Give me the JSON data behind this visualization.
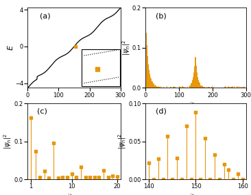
{
  "orange_color": "#E8960A",
  "black_color": "#000000",
  "panel_a": {
    "title": "(a)",
    "xlabel": "m",
    "ylabel": "E",
    "xlim": [
      0,
      300
    ],
    "ylim": [
      -4.5,
      4.2
    ],
    "yticks": [
      -4,
      0,
      4
    ],
    "xticks": [
      0,
      100,
      200,
      300
    ],
    "highlight_x": 155,
    "highlight_y": 0.0,
    "highlight2_x": 225,
    "highlight2_y": -2.5,
    "inset_x0": 175,
    "inset_x1": 298,
    "inset_y0": -4.3,
    "inset_y1": -0.3
  },
  "panel_b": {
    "title": "(b)",
    "xlabel": "site n",
    "xlim": [
      0,
      300
    ],
    "ylim": [
      0,
      0.2
    ],
    "yticks": [
      0,
      0.1,
      0.2
    ],
    "xticks": [
      0,
      100,
      200,
      300
    ]
  },
  "panel_c": {
    "title": "(c)",
    "xlabel": "site n",
    "xlim": [
      1,
      20
    ],
    "ylim": [
      0,
      0.2
    ],
    "yticks": [
      0,
      0.1,
      0.2
    ],
    "xticks": [
      1,
      10,
      20
    ],
    "x": [
      1,
      2,
      3,
      4,
      5,
      6,
      7,
      8,
      9,
      10,
      11,
      12,
      13,
      14,
      15,
      16,
      17,
      18,
      19,
      20
    ],
    "y": [
      0.162,
      0.075,
      0.005,
      0.022,
      0.004,
      0.095,
      0.004,
      0.005,
      0.005,
      0.015,
      0.005,
      0.033,
      0.005,
      0.005,
      0.005,
      0.005,
      0.023,
      0.005,
      0.01,
      0.008
    ]
  },
  "panel_d": {
    "title": "(d)",
    "xlabel": "site n",
    "xlim": [
      140,
      160
    ],
    "ylim": [
      0,
      0.1
    ],
    "yticks": [
      0,
      0.05,
      0.1
    ],
    "xticks": [
      140,
      150,
      160
    ],
    "x": [
      140,
      141,
      142,
      143,
      144,
      145,
      146,
      147,
      148,
      149,
      150,
      151,
      152,
      153,
      154,
      155,
      156,
      157,
      158,
      159,
      160
    ],
    "y": [
      0.022,
      0.0,
      0.027,
      0.0,
      0.057,
      0.0,
      0.028,
      0.0,
      0.07,
      0.0,
      0.088,
      0.0,
      0.054,
      0.0,
      0.033,
      0.0,
      0.02,
      0.013,
      0.0,
      0.007,
      0.0
    ]
  }
}
